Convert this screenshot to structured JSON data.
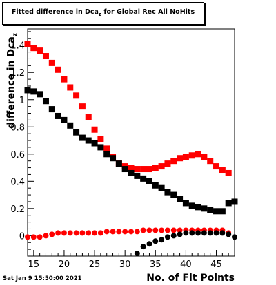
{
  "chart_data": {
    "type": "scatter",
    "title": "Fitted difference in Dca",
    "title_subscript": "z",
    "title_suffix": "for Global Rec All NoHits",
    "xlabel": "No. of Fit Points",
    "ylabel": "difference in Dca",
    "ylabel_subscript": "z",
    "xlim": [
      14,
      48
    ],
    "ylim": [
      -0.15,
      1.52
    ],
    "x_ticks": [
      15,
      20,
      25,
      30,
      35,
      40,
      45
    ],
    "y_ticks": [
      0,
      0.2,
      0.4,
      0.6,
      0.8,
      1,
      1.2,
      1.4
    ],
    "x_tick_labels": [
      "15",
      "20",
      "25",
      "30",
      "35",
      "40",
      "45"
    ],
    "y_tick_labels": [
      "0",
      "0.2",
      "0.4",
      "0.6",
      "0.8",
      "1",
      "1.2",
      "1.4"
    ],
    "grid": false,
    "series": [
      {
        "marker": "square",
        "color": "#ff0000",
        "x": [
          14,
          15,
          16,
          17,
          18,
          19,
          20,
          21,
          22,
          23,
          24,
          25,
          26,
          27,
          28,
          29,
          30,
          31,
          32,
          33,
          34,
          35,
          36,
          37,
          38,
          39,
          40,
          41,
          42,
          43,
          44,
          45,
          46,
          47
        ],
        "y": [
          1.41,
          1.38,
          1.36,
          1.32,
          1.27,
          1.22,
          1.15,
          1.09,
          1.03,
          0.95,
          0.87,
          0.78,
          0.71,
          0.64,
          0.58,
          0.53,
          0.51,
          0.5,
          0.49,
          0.49,
          0.49,
          0.5,
          0.51,
          0.53,
          0.55,
          0.57,
          0.58,
          0.59,
          0.6,
          0.58,
          0.55,
          0.51,
          0.48,
          0.46
        ]
      },
      {
        "marker": "square",
        "color": "#000000",
        "x": [
          14,
          15,
          16,
          17,
          18,
          19,
          20,
          21,
          22,
          23,
          24,
          25,
          26,
          27,
          28,
          29,
          30,
          31,
          32,
          33,
          34,
          35,
          36,
          37,
          38,
          39,
          40,
          41,
          42,
          43,
          44,
          45,
          46,
          47,
          48
        ],
        "y": [
          1.07,
          1.06,
          1.04,
          0.99,
          0.93,
          0.88,
          0.85,
          0.81,
          0.76,
          0.72,
          0.7,
          0.68,
          0.65,
          0.6,
          0.57,
          0.53,
          0.49,
          0.46,
          0.44,
          0.42,
          0.4,
          0.37,
          0.35,
          0.32,
          0.3,
          0.27,
          0.24,
          0.22,
          0.21,
          0.2,
          0.19,
          0.18,
          0.18,
          0.24,
          0.25
        ]
      },
      {
        "marker": "circle",
        "color": "#ff0000",
        "x": [
          14,
          15,
          16,
          17,
          18,
          19,
          20,
          21,
          22,
          23,
          24,
          25,
          26,
          27,
          28,
          29,
          30,
          31,
          32,
          33,
          34,
          35,
          36,
          37,
          38,
          39,
          40,
          41,
          42,
          43,
          44,
          45,
          46,
          47
        ],
        "y": [
          -0.01,
          -0.01,
          -0.01,
          0.0,
          0.01,
          0.02,
          0.02,
          0.02,
          0.02,
          0.02,
          0.02,
          0.02,
          0.02,
          0.03,
          0.03,
          0.03,
          0.03,
          0.03,
          0.03,
          0.04,
          0.04,
          0.04,
          0.04,
          0.04,
          0.04,
          0.04,
          0.04,
          0.04,
          0.04,
          0.04,
          0.04,
          0.04,
          0.04,
          0.02
        ]
      },
      {
        "marker": "circle",
        "color": "#000000",
        "x": [
          32,
          33,
          34,
          35,
          36,
          37,
          38,
          39,
          40,
          41,
          42,
          43,
          44,
          45,
          46,
          47,
          48
        ],
        "y": [
          -0.13,
          -0.08,
          -0.06,
          -0.04,
          -0.03,
          -0.01,
          0.0,
          0.01,
          0.02,
          0.02,
          0.02,
          0.02,
          0.02,
          0.02,
          0.02,
          0.01,
          -0.01
        ]
      }
    ]
  },
  "footer": {
    "timestamp": "Sat Jan  9 15:50:00 2021"
  }
}
